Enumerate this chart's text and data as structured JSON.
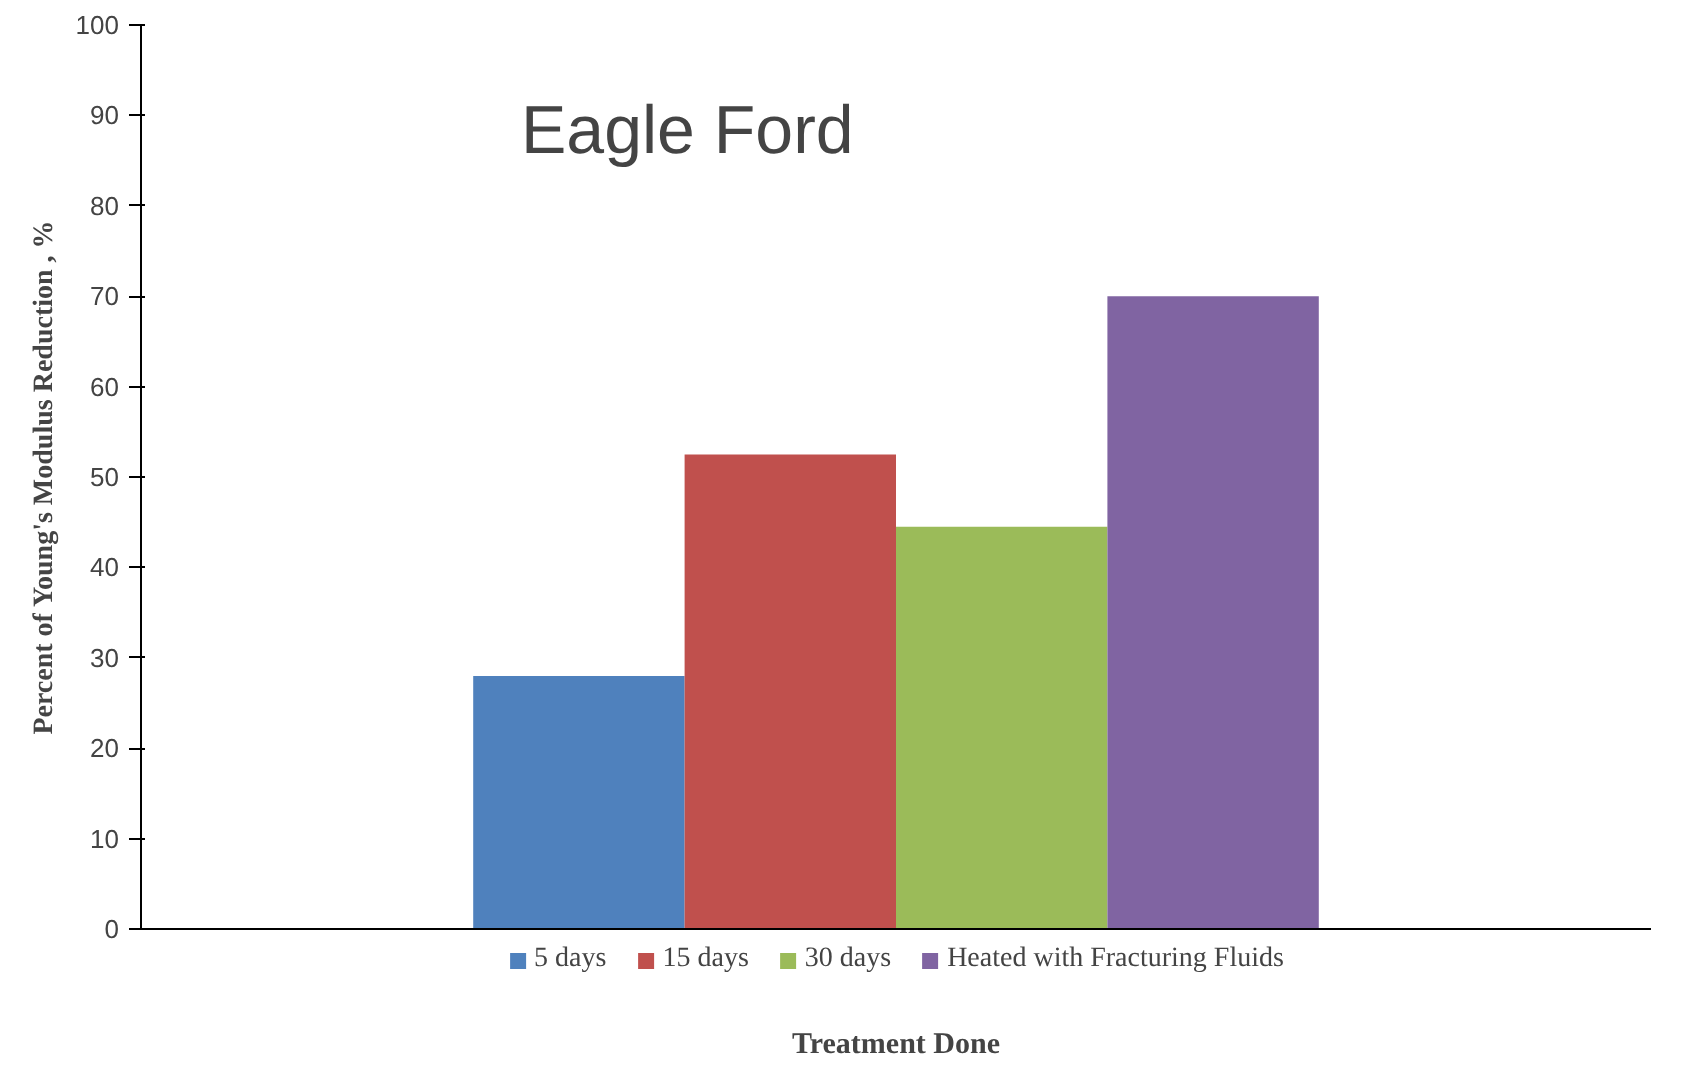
{
  "chart_data": {
    "type": "bar",
    "title": "Eagle Ford",
    "xlabel": "Treatment Done",
    "ylabel": "Percent of Young's Modulus Reduction , %",
    "categories": [
      null
    ],
    "series": [
      {
        "name": "5 days",
        "color": "#4f81bd",
        "values": [
          28
        ]
      },
      {
        "name": "15 days",
        "color": "#c0504d",
        "values": [
          52.5
        ]
      },
      {
        "name": "30 days",
        "color": "#9bbb59",
        "values": [
          44.5
        ]
      },
      {
        "name": "Heated with Fracturing Fluids",
        "color": "#8064a2",
        "values": [
          70
        ]
      }
    ],
    "ylim": [
      0,
      100
    ],
    "yticks": [
      0,
      10,
      20,
      30,
      40,
      50,
      60,
      70,
      80,
      90,
      100
    ],
    "grid": false,
    "legend": "bottom"
  }
}
